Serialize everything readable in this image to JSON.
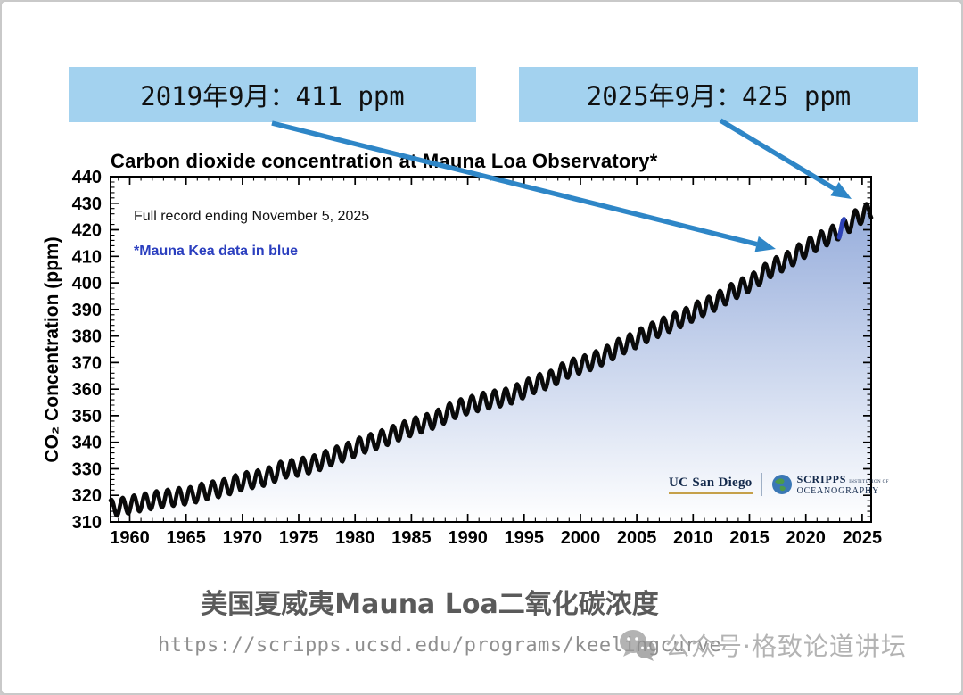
{
  "callouts": [
    {
      "label": "2019年9月：411 ppm"
    },
    {
      "label": "2025年9月：425 ppm"
    }
  ],
  "chart_data": {
    "type": "area",
    "title": "Carbon dioxide concentration at Mauna Loa Observatory*",
    "note_full_record": "Full record ending November 5, 2025",
    "note_mauna_kea": "*Mauna Kea data in blue",
    "xlabel": "",
    "ylabel": "CO₂ Concentration (ppm)",
    "xlim": [
      1958.3,
      2025.8
    ],
    "ylim": [
      310,
      440
    ],
    "x_ticks": [
      1960,
      1965,
      1970,
      1975,
      1980,
      1985,
      1990,
      1995,
      2000,
      2005,
      2010,
      2015,
      2020,
      2025
    ],
    "x_minor_step": 1,
    "y_ticks": [
      310,
      320,
      330,
      340,
      350,
      360,
      370,
      380,
      390,
      400,
      410,
      420,
      430,
      440
    ],
    "y_minor_step": 2,
    "record_start": 1958.3,
    "record_end": 2025.84,
    "annual_means_start_year": 1958,
    "annual_means_ppm": [
      315.3,
      316.0,
      316.9,
      317.6,
      318.5,
      319.0,
      319.6,
      320.0,
      321.4,
      322.2,
      323.0,
      324.6,
      325.7,
      326.3,
      327.5,
      329.7,
      330.2,
      331.1,
      332.0,
      333.8,
      335.4,
      336.8,
      338.8,
      340.1,
      341.5,
      343.2,
      344.9,
      346.4,
      347.6,
      349.3,
      351.7,
      353.2,
      354.4,
      355.6,
      356.4,
      357.1,
      358.9,
      361.0,
      362.7,
      363.9,
      366.8,
      368.5,
      369.7,
      371.3,
      373.4,
      376.0,
      377.7,
      380.0,
      382.1,
      384.0,
      385.8,
      387.6,
      390.1,
      391.8,
      394.1,
      396.7,
      398.8,
      401.0,
      404.4,
      406.8,
      408.7,
      411.7,
      414.2,
      416.5,
      418.6,
      421.1,
      424.6,
      426.8
    ],
    "seasonal_amplitude_ppm": 3.2,
    "seasonal_peak_frac": 0.37,
    "mauna_kea_segment": {
      "start": 2022.95,
      "end": 2023.4
    },
    "series_color": "#0a0a0a",
    "mauna_kea_color": "#2e43b8",
    "fill_gradient": [
      "#8ca5d8",
      "#ffffff"
    ],
    "legend": "none",
    "grid": "off",
    "annotated_points": [
      {
        "date": "2019年9月",
        "ppm": 411
      },
      {
        "date": "2025年9月",
        "ppm": 425
      }
    ]
  },
  "logos": {
    "ucsd": "UC San Diego",
    "scripps": "SCRIPPS",
    "scripps_inst": "INSTITUTION OF",
    "scripps_ocean": "OCEANOGRAPHY"
  },
  "caption": "美国夏威夷Mauna Loa二氧化碳浓度",
  "source_url": "https://scripps.ucsd.edu/programs/keelingcurve",
  "watermark": "公众号·格致论道讲坛",
  "colors": {
    "callout_bg": "#a3d2ef",
    "arrow": "#2e86c7",
    "caption_text": "#5a5a5a",
    "url_text": "#8f8f8f",
    "watermark_text": "#b3b3b3",
    "note_blue": "#2b3fbf"
  }
}
